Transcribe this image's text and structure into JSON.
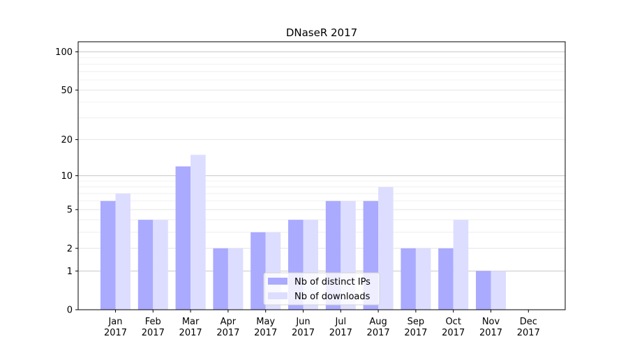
{
  "chart_data": {
    "type": "bar",
    "title": "DNaseR 2017",
    "xlabel": "",
    "ylabel": "",
    "y_scale": "log(1+y)",
    "ylim": [
      0,
      120
    ],
    "yticks": [
      0,
      1,
      2,
      5,
      10,
      20,
      50,
      100
    ],
    "grid": true,
    "legend_position": "bottom-center",
    "categories": [
      [
        "Jan",
        "2017"
      ],
      [
        "Feb",
        "2017"
      ],
      [
        "Mar",
        "2017"
      ],
      [
        "Apr",
        "2017"
      ],
      [
        "May",
        "2017"
      ],
      [
        "Jun",
        "2017"
      ],
      [
        "Jul",
        "2017"
      ],
      [
        "Aug",
        "2017"
      ],
      [
        "Sep",
        "2017"
      ],
      [
        "Oct",
        "2017"
      ],
      [
        "Nov",
        "2017"
      ],
      [
        "Dec",
        "2017"
      ]
    ],
    "series": [
      {
        "name": "Nb of distinct IPs",
        "color": "#aaaaff",
        "values": [
          6,
          4,
          12,
          2,
          3,
          4,
          6,
          6,
          2,
          2,
          1,
          0
        ]
      },
      {
        "name": "Nb of downloads",
        "color": "#ddddff",
        "values": [
          7,
          4,
          15,
          2,
          3,
          4,
          6,
          8,
          2,
          4,
          1,
          0
        ]
      }
    ]
  }
}
